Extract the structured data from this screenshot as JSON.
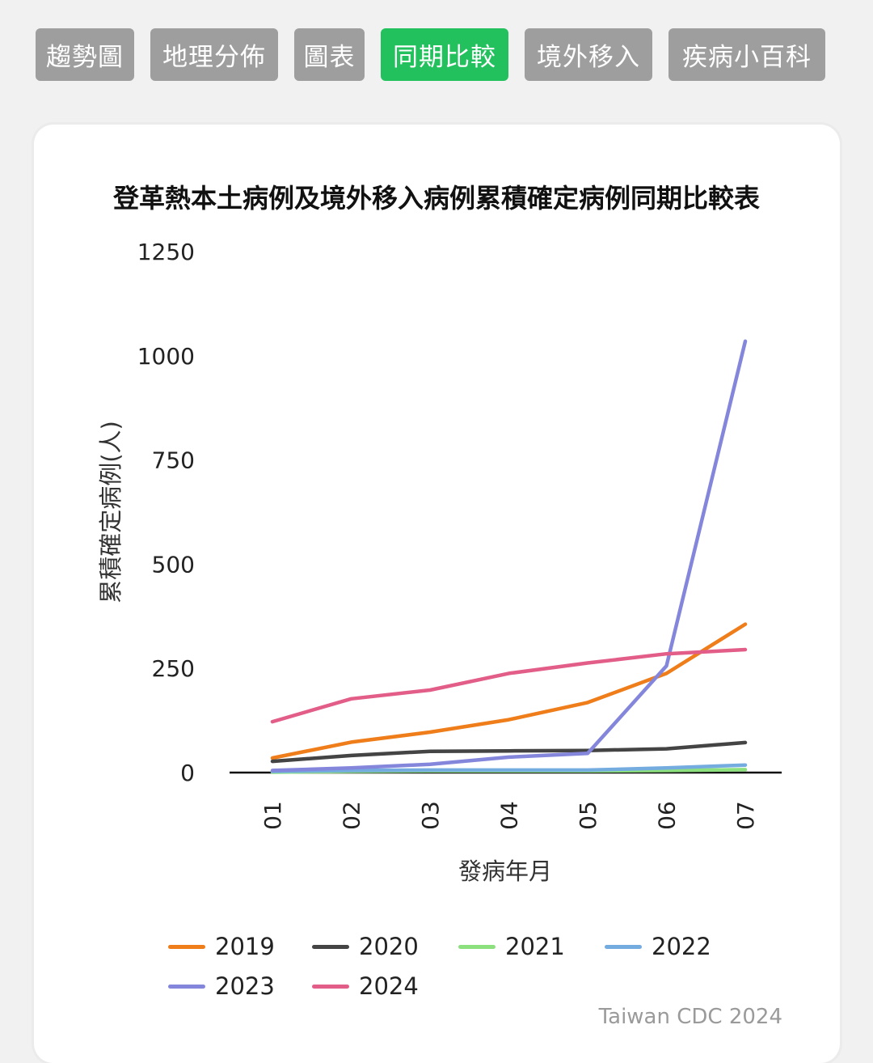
{
  "tabs": [
    {
      "label": "趨勢圖",
      "active": false
    },
    {
      "label": "地理分佈",
      "active": false
    },
    {
      "label": "圖表",
      "active": false
    },
    {
      "label": "同期比較",
      "active": true
    },
    {
      "label": "境外移入",
      "active": false
    },
    {
      "label": "疾病小百科",
      "active": false
    }
  ],
  "credit": "Taiwan CDC 2024",
  "colors": {
    "active_tab": "#22c15e",
    "inactive_tab": "#9e9e9e"
  },
  "chart_data": {
    "type": "line",
    "title": "登革熱本土病例及境外移入病例累積確定病例同期比較表",
    "xlabel": "發病年月",
    "ylabel": "累積確定病例(人)",
    "categories": [
      "01",
      "02",
      "03",
      "04",
      "05",
      "06",
      "07"
    ],
    "yticks": [
      "0",
      "250",
      "500",
      "750",
      "1000",
      "1250"
    ],
    "ylim": [
      0,
      1250
    ],
    "grid": false,
    "legend_position": "bottom",
    "series": [
      {
        "name": "2019",
        "color": "#ee7d1a",
        "values": [
          35,
          73,
          97,
          127,
          168,
          238,
          356
        ]
      },
      {
        "name": "2020",
        "color": "#444444",
        "values": [
          27,
          41,
          51,
          52,
          53,
          57,
          72
        ]
      },
      {
        "name": "2021",
        "color": "#8de07e",
        "values": [
          1,
          3,
          4,
          4,
          4,
          5,
          7
        ]
      },
      {
        "name": "2022",
        "color": "#74ace0",
        "values": [
          3,
          5,
          6,
          6,
          6,
          11,
          18
        ]
      },
      {
        "name": "2023",
        "color": "#8486dc",
        "values": [
          5,
          11,
          20,
          37,
          46,
          256,
          1035
        ]
      },
      {
        "name": "2024",
        "color": "#e25d88",
        "values": [
          122,
          177,
          198,
          238,
          263,
          285,
          295
        ]
      }
    ]
  }
}
